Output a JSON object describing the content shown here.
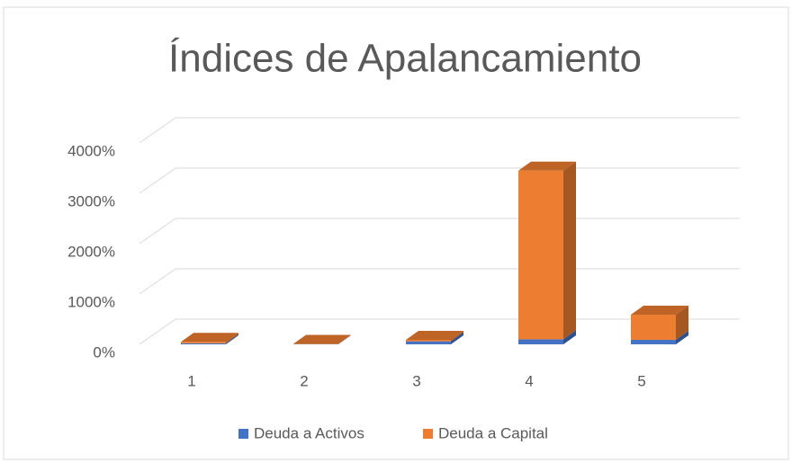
{
  "chart_data": {
    "type": "bar3d_stacked",
    "title": "Índices de Apalancamiento",
    "categories": [
      "1",
      "2",
      "3",
      "4",
      "5"
    ],
    "series": [
      {
        "name": "Deuda a Activos",
        "color": "#4472c4",
        "values": [
          20,
          5,
          60,
          100,
          90
        ]
      },
      {
        "name": "Deuda a Capital",
        "color": "#ed7d31",
        "values": [
          30,
          5,
          30,
          3350,
          500
        ]
      }
    ],
    "ylim": [
      0,
      4500
    ],
    "yticks": [
      {
        "value": 0,
        "label": "0%"
      },
      {
        "value": 1000,
        "label": "1000%"
      },
      {
        "value": 2000,
        "label": "2000%"
      },
      {
        "value": 3000,
        "label": "3000%"
      },
      {
        "value": 4000,
        "label": "4000%"
      }
    ],
    "grid": true,
    "legend": "bottom"
  }
}
